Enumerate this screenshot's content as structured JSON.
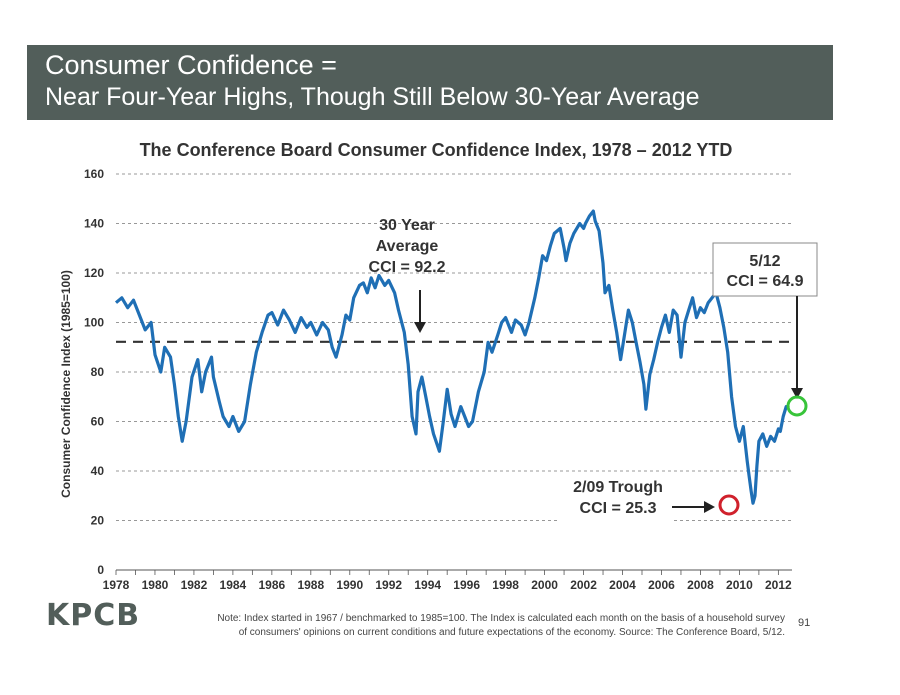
{
  "slide": {
    "title_line1": "Consumer Confidence =",
    "title_line2": "Near Four-Year Highs, Though Still Below 30-Year Average",
    "logo": "KPCB",
    "note_line1": "Note: Index started in 1967 / benchmarked to 1985=100. The Index is calculated each month on the basis of a household survey",
    "note_line2": "of consumers' opinions on current conditions and future expectations of the economy. Source: The Conference Board, 5/12.",
    "page_number": "91"
  },
  "chart_data": {
    "type": "line",
    "title": "The Conference Board Consumer Confidence Index, 1978 – 2012 YTD",
    "ylabel": "Consumer Confidence Index (1985=100)",
    "xlabel": "",
    "xlim": [
      1978,
      2012.7
    ],
    "ylim": [
      0,
      160
    ],
    "yticks": [
      0,
      20,
      40,
      60,
      80,
      100,
      120,
      140,
      160
    ],
    "xticks": [
      "1978",
      "1980",
      "1982",
      "1984",
      "1986",
      "1988",
      "1990",
      "1992",
      "1994",
      "1996",
      "1998",
      "2000",
      "2002",
      "2004",
      "2006",
      "2008",
      "2010",
      "2012"
    ],
    "grid": "horizontal-dashed",
    "average_line": 92.2,
    "series": [
      {
        "color": "#1f6fb5",
        "points": [
          [
            1978.0,
            108
          ],
          [
            1978.3,
            110
          ],
          [
            1978.6,
            106
          ],
          [
            1978.9,
            109
          ],
          [
            1979.2,
            103
          ],
          [
            1979.5,
            97
          ],
          [
            1979.8,
            100
          ],
          [
            1980.0,
            87
          ],
          [
            1980.3,
            80
          ],
          [
            1980.5,
            90
          ],
          [
            1980.8,
            86
          ],
          [
            1981.0,
            75
          ],
          [
            1981.2,
            62
          ],
          [
            1981.4,
            52
          ],
          [
            1981.6,
            60
          ],
          [
            1981.9,
            78
          ],
          [
            1982.2,
            85
          ],
          [
            1982.4,
            72
          ],
          [
            1982.6,
            80
          ],
          [
            1982.9,
            86
          ],
          [
            1983.0,
            78
          ],
          [
            1983.3,
            68
          ],
          [
            1983.5,
            62
          ],
          [
            1983.8,
            58
          ],
          [
            1984.0,
            62
          ],
          [
            1984.3,
            56
          ],
          [
            1984.6,
            60
          ],
          [
            1984.9,
            75
          ],
          [
            1985.2,
            88
          ],
          [
            1985.5,
            96
          ],
          [
            1985.8,
            103
          ],
          [
            1986.0,
            104
          ],
          [
            1986.3,
            99
          ],
          [
            1986.6,
            105
          ],
          [
            1986.9,
            101
          ],
          [
            1987.2,
            96
          ],
          [
            1987.5,
            102
          ],
          [
            1987.8,
            98
          ],
          [
            1988.0,
            100
          ],
          [
            1988.3,
            95
          ],
          [
            1988.6,
            100
          ],
          [
            1988.9,
            97
          ],
          [
            1989.1,
            90
          ],
          [
            1989.3,
            86
          ],
          [
            1989.6,
            95
          ],
          [
            1989.8,
            103
          ],
          [
            1990.0,
            101
          ],
          [
            1990.2,
            110
          ],
          [
            1990.5,
            115
          ],
          [
            1990.7,
            116
          ],
          [
            1990.9,
            112
          ],
          [
            1991.1,
            118
          ],
          [
            1991.3,
            114
          ],
          [
            1991.5,
            119
          ],
          [
            1991.8,
            115
          ],
          [
            1992.0,
            117
          ],
          [
            1992.3,
            112
          ],
          [
            1992.5,
            105
          ],
          [
            1992.8,
            96
          ],
          [
            1993.0,
            83
          ],
          [
            1993.2,
            62
          ],
          [
            1993.4,
            55
          ],
          [
            1993.5,
            72
          ],
          [
            1993.7,
            78
          ],
          [
            1993.9,
            70
          ],
          [
            1994.1,
            62
          ],
          [
            1994.3,
            55
          ],
          [
            1994.6,
            48
          ],
          [
            1994.8,
            60
          ],
          [
            1995.0,
            73
          ],
          [
            1995.2,
            63
          ],
          [
            1995.4,
            58
          ],
          [
            1995.7,
            66
          ],
          [
            1995.9,
            62
          ],
          [
            1996.1,
            58
          ],
          [
            1996.3,
            60
          ],
          [
            1996.6,
            72
          ],
          [
            1996.9,
            80
          ],
          [
            1997.1,
            92
          ],
          [
            1997.3,
            88
          ],
          [
            1997.6,
            95
          ],
          [
            1997.8,
            100
          ],
          [
            1998.0,
            102
          ],
          [
            1998.3,
            96
          ],
          [
            1998.5,
            101
          ],
          [
            1998.8,
            99
          ],
          [
            1999.0,
            95
          ],
          [
            1999.2,
            100
          ],
          [
            1999.5,
            110
          ],
          [
            1999.7,
            118
          ],
          [
            1999.9,
            127
          ],
          [
            2000.1,
            125
          ],
          [
            2000.3,
            131
          ],
          [
            2000.5,
            136
          ],
          [
            2000.8,
            138
          ],
          [
            2001.0,
            130
          ],
          [
            2001.1,
            125
          ],
          [
            2001.3,
            132
          ],
          [
            2001.5,
            136
          ],
          [
            2001.8,
            140
          ],
          [
            2002.0,
            138
          ],
          [
            2002.1,
            140
          ],
          [
            2002.3,
            143
          ],
          [
            2002.5,
            145
          ],
          [
            2002.6,
            141
          ],
          [
            2002.8,
            137
          ],
          [
            2003.0,
            124
          ],
          [
            2003.1,
            112
          ],
          [
            2003.3,
            115
          ],
          [
            2003.5,
            105
          ],
          [
            2003.7,
            96
          ],
          [
            2003.9,
            85
          ],
          [
            2004.1,
            95
          ],
          [
            2004.3,
            105
          ],
          [
            2004.5,
            100
          ],
          [
            2004.7,
            92
          ],
          [
            2004.9,
            84
          ],
          [
            2005.1,
            75
          ],
          [
            2005.2,
            65
          ],
          [
            2005.4,
            79
          ],
          [
            2005.6,
            85
          ],
          [
            2005.8,
            92
          ],
          [
            2006.0,
            98
          ],
          [
            2006.2,
            103
          ],
          [
            2006.4,
            96
          ],
          [
            2006.6,
            105
          ],
          [
            2006.8,
            103
          ],
          [
            2007.0,
            86
          ],
          [
            2007.2,
            100
          ],
          [
            2007.4,
            105
          ],
          [
            2007.6,
            110
          ],
          [
            2007.8,
            102
          ],
          [
            2008.0,
            106
          ],
          [
            2008.2,
            104
          ],
          [
            2008.4,
            108
          ],
          [
            2008.6,
            110
          ],
          [
            2008.8,
            112
          ],
          [
            2009.0,
            106
          ],
          [
            2009.2,
            98
          ],
          [
            2009.4,
            88
          ],
          [
            2009.6,
            70
          ],
          [
            2009.8,
            58
          ],
          [
            2010.0,
            52
          ],
          [
            2010.2,
            58
          ],
          [
            2010.4,
            44
          ],
          [
            2010.5,
            38
          ],
          [
            2010.6,
            32
          ],
          [
            2010.7,
            27
          ],
          [
            2010.8,
            30
          ],
          [
            2010.9,
            42
          ],
          [
            2011.0,
            52
          ],
          [
            2011.2,
            55
          ],
          [
            2011.4,
            50
          ],
          [
            2011.6,
            54
          ],
          [
            2011.8,
            52
          ],
          [
            2012.0,
            57
          ],
          [
            2012.1,
            56
          ],
          [
            2012.25,
            62
          ],
          [
            2012.4,
            66
          ],
          [
            2012.55,
            65.4
          ]
        ]
      }
    ],
    "annotations": [
      {
        "label_lines": [
          "30 Year",
          "Average",
          "CCI = 92.2"
        ]
      },
      {
        "label_lines": [
          "5/12",
          "CCI = 64.9"
        ],
        "point": [
          2012.42,
          65
        ],
        "circle_color": "#38c43a"
      },
      {
        "label_lines": [
          "2/09 Trough",
          "CCI = 25.3"
        ],
        "point": [
          2009.15,
          27
        ],
        "circle_color": "#d0212c"
      }
    ]
  }
}
